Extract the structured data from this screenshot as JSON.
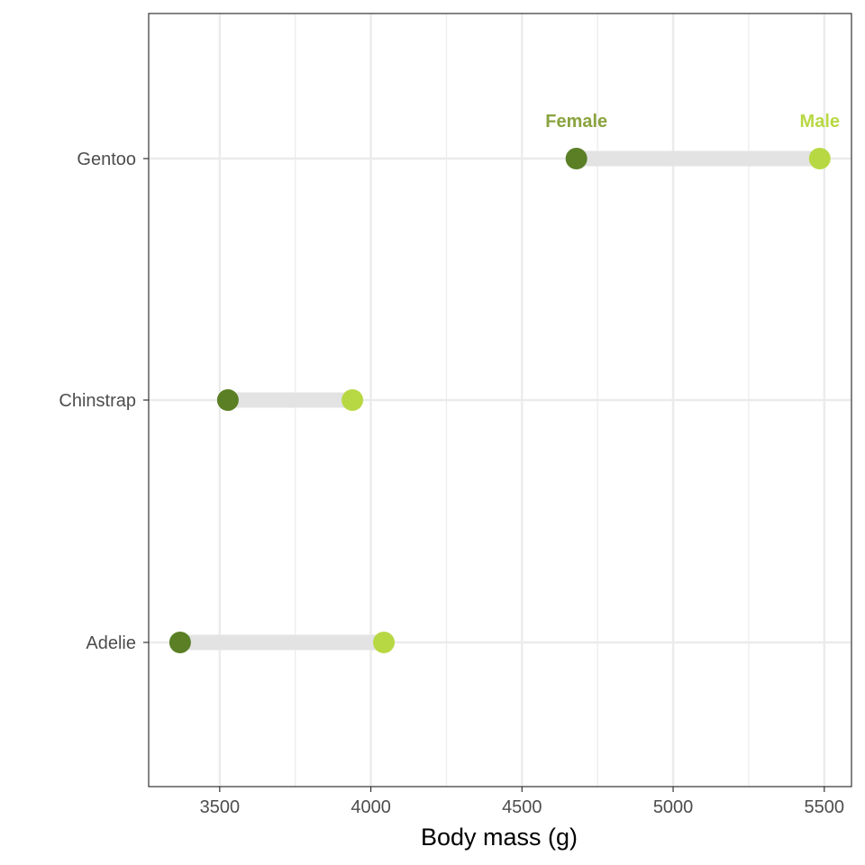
{
  "chart_data": {
    "type": "dumbbell",
    "title": "",
    "xlabel": "Body mass (g)",
    "ylabel": "",
    "xlim": [
      3265,
      5590
    ],
    "x_ticks": [
      3500,
      4000,
      4500,
      5000,
      5500
    ],
    "x_tick_labels": [
      "3500",
      "4000",
      "4500",
      "5000",
      "5500"
    ],
    "categories": [
      "Gentoo",
      "Chinstrap",
      "Adelie"
    ],
    "series": [
      {
        "name": "Female",
        "color": "#5a7f25",
        "values": [
          4680,
          3527,
          3369
        ]
      },
      {
        "name": "Male",
        "color": "#b8d843",
        "values": [
          5485,
          3939,
          4043
        ]
      }
    ],
    "segment_color": "#e3e3e3",
    "annotations": [
      {
        "text": "Female",
        "category": "Gentoo",
        "x": 4680,
        "color": "#8aa33e"
      },
      {
        "text": "Male",
        "category": "Gentoo",
        "x": 5485,
        "color": "#b8d843"
      }
    ],
    "grid": true,
    "legend": "none"
  }
}
